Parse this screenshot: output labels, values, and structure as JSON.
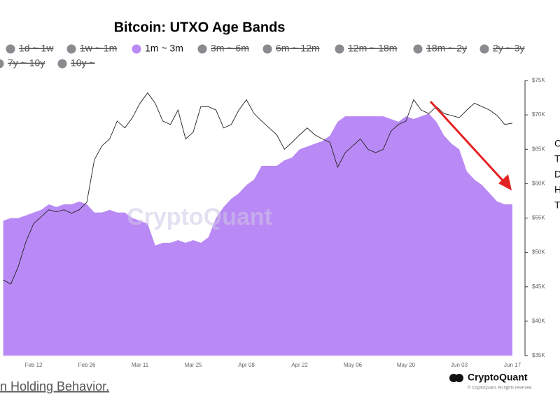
{
  "chart_data": {
    "type": "area",
    "title": "Bitcoin: UTXO Age Bands",
    "series": [
      {
        "name": "1d ~ 1w",
        "visible": false
      },
      {
        "name": "1w ~ 1m",
        "visible": false
      },
      {
        "name": "1m ~ 3m",
        "visible": true,
        "color": "#b98af5",
        "values": [
          49,
          50,
          50,
          51,
          52,
          53,
          55,
          54,
          55,
          55,
          56,
          55,
          52,
          52,
          53,
          52,
          52,
          50,
          49,
          48,
          40,
          41,
          41,
          42,
          41,
          42,
          41,
          43,
          50,
          54,
          57,
          59,
          62,
          64,
          69,
          69,
          69,
          71,
          72,
          75,
          76,
          77,
          78,
          80,
          85,
          87,
          87,
          87,
          87,
          87,
          87,
          86,
          85,
          87,
          86,
          87,
          88,
          85,
          80,
          77,
          75,
          67,
          64,
          62,
          59,
          56,
          55,
          55
        ]
      },
      {
        "name": "3m ~ 6m",
        "visible": false
      },
      {
        "name": "6m ~ 12m",
        "visible": false
      },
      {
        "name": "12m ~ 18m",
        "visible": false
      },
      {
        "name": "18m ~ 2y",
        "visible": false
      },
      {
        "name": "2y ~ 3y",
        "visible": false
      },
      {
        "name": "7y ~ 10y",
        "visible": false
      },
      {
        "name": "10y ~",
        "visible": false
      }
    ],
    "price": {
      "color": "#222222",
      "axis": "y2",
      "values": [
        46000,
        45400,
        48000,
        51600,
        54200,
        55200,
        56200,
        55900,
        56200,
        55700,
        56200,
        57300,
        63500,
        65500,
        66500,
        69100,
        68100,
        69600,
        71700,
        73200,
        71700,
        69100,
        68600,
        70700,
        66500,
        67500,
        71200,
        71200,
        70700,
        68100,
        68600,
        70700,
        72200,
        70200,
        69100,
        68100,
        67100,
        65000,
        66000,
        67100,
        68100,
        67100,
        66500,
        66000,
        62400,
        64500,
        65500,
        66500,
        65000,
        64500,
        65000,
        67600,
        68600,
        69100,
        72200,
        70700,
        70200,
        71200,
        70200,
        69900,
        69600,
        70700,
        71700,
        71200,
        70700,
        69900,
        68600,
        68800
      ]
    },
    "categories": [
      null,
      null,
      null,
      null,
      "Feb 12",
      null,
      null,
      null,
      null,
      null,
      null,
      "Feb 26",
      null,
      null,
      null,
      null,
      null,
      null,
      "Mar 11",
      null,
      null,
      null,
      null,
      null,
      null,
      "Mar 25",
      null,
      null,
      null,
      null,
      null,
      null,
      "Apr 08",
      null,
      null,
      null,
      null,
      null,
      null,
      "Apr 22",
      null,
      null,
      null,
      null,
      null,
      null,
      "May 06",
      null,
      null,
      null,
      null,
      null,
      null,
      "May 20",
      null,
      null,
      null,
      null,
      null,
      null,
      "Jun 03",
      null,
      null,
      null,
      null,
      null,
      null,
      "Jun 17"
    ],
    "ylim": [
      0,
      100
    ],
    "y2lim": [
      35000,
      75000
    ],
    "y2ticks": [
      {
        "value": 35000,
        "label": "$35K"
      },
      {
        "value": 40000,
        "label": "$40K"
      },
      {
        "value": 45000,
        "label": "$45K"
      },
      {
        "value": 50000,
        "label": "$50K"
      },
      {
        "value": 55000,
        "label": "$55K"
      },
      {
        "value": 60000,
        "label": "$60K"
      },
      {
        "value": 65000,
        "label": "$65K"
      },
      {
        "value": 70000,
        "label": "$70K"
      },
      {
        "value": 75000,
        "label": "$75K"
      }
    ],
    "watermark": "CryptoQuant",
    "logo": "CryptoQuant",
    "copyright": "© CryptoQuant. All rights reserved.",
    "side_text": [
      "C",
      "T",
      "D",
      "H",
      "T"
    ],
    "caption": "n Holding Behavior."
  }
}
